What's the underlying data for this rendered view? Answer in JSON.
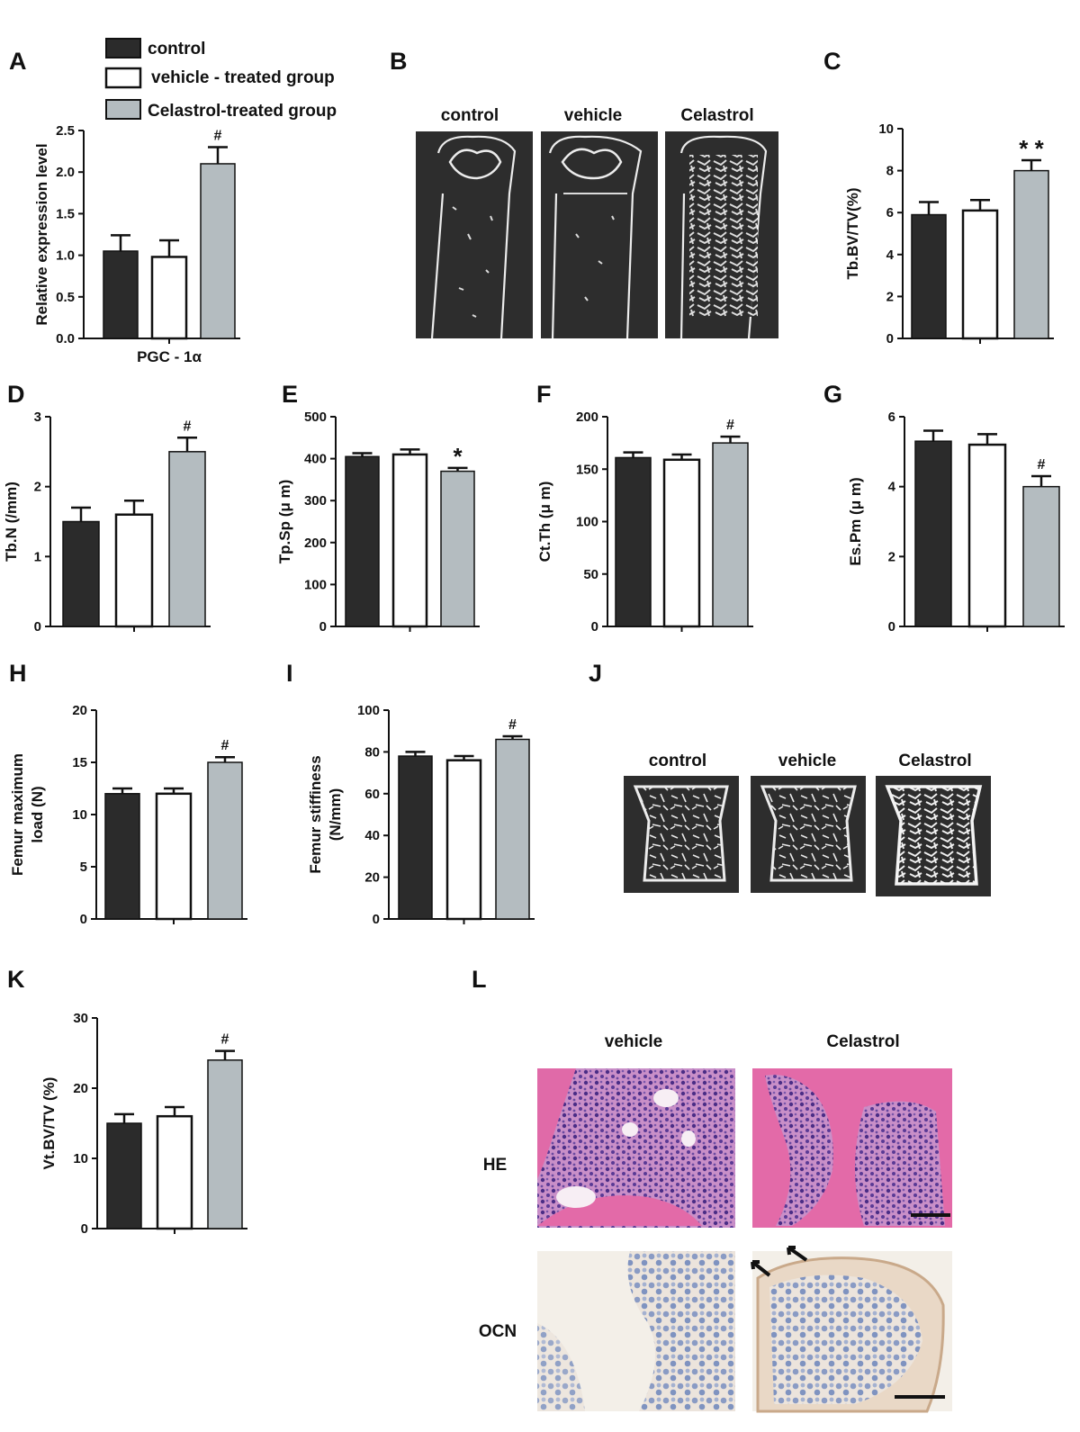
{
  "legend": {
    "items": [
      {
        "label": "control",
        "color": "#2b2b2b"
      },
      {
        "label": "vehicle - treated group",
        "color": "#ffffff"
      },
      {
        "label": "Celastrol-treated group",
        "color": "#b4bcc0"
      }
    ]
  },
  "colors": {
    "control": "#2b2b2b",
    "vehicle": "#ffffff",
    "celastrol": "#b4bcc0",
    "bone_bg": "#2d2d2d",
    "he_pink": "#e36aa8",
    "he_cells": "#5a3a8a",
    "ocn_bg": "#f2ede6"
  },
  "panels": {
    "B": {
      "letter": "B",
      "labels": [
        "control",
        "vehicle",
        "Celastrol"
      ],
      "kind": "micro-CT longitudinal femur sections"
    },
    "J": {
      "letter": "J",
      "labels": [
        "control",
        "vehicle",
        "Celastrol"
      ],
      "kind": "micro-CT vertebra sections"
    },
    "L": {
      "letter": "L",
      "col_labels": [
        "vehicle",
        "Celastrol"
      ],
      "row_labels": [
        "HE",
        "OCN"
      ],
      "kind": "histology"
    }
  },
  "chart_data": [
    {
      "id": "A",
      "letter": "A",
      "type": "bar",
      "categories": [
        "control",
        "vehicle",
        "Celastrol"
      ],
      "values": [
        1.05,
        0.98,
        2.1
      ],
      "errors": [
        0.19,
        0.2,
        0.2
      ],
      "ylim": [
        0,
        2.5
      ],
      "yticks": [
        "0.0",
        "0.5",
        "1.0",
        "1.5",
        "2.0",
        "2.5"
      ],
      "ylabel": "Relative  expression level",
      "xlabel": "PGC - 1α",
      "significance": [
        "",
        "",
        "#"
      ]
    },
    {
      "id": "C",
      "letter": "C",
      "type": "bar",
      "categories": [
        "control",
        "vehicle",
        "Celastrol"
      ],
      "values": [
        5.9,
        6.1,
        8.0
      ],
      "errors": [
        0.6,
        0.5,
        0.5
      ],
      "ylim": [
        0,
        10
      ],
      "yticks": [
        "0",
        "2",
        "4",
        "6",
        "8",
        "10"
      ],
      "ylabel": "Tb.BV/TV(%)",
      "xlabel": "",
      "significance": [
        "",
        "",
        "* *"
      ]
    },
    {
      "id": "D",
      "letter": "D",
      "type": "bar",
      "categories": [
        "control",
        "vehicle",
        "Celastrol"
      ],
      "values": [
        1.5,
        1.6,
        2.5
      ],
      "errors": [
        0.2,
        0.2,
        0.2
      ],
      "ylim": [
        0,
        3
      ],
      "yticks": [
        "0",
        "1",
        "2",
        "3"
      ],
      "ylabel": "Tb.N (/mm)",
      "xlabel": "",
      "significance": [
        "",
        "",
        "#"
      ]
    },
    {
      "id": "E",
      "letter": "E",
      "type": "bar",
      "categories": [
        "control",
        "vehicle",
        "Celastrol"
      ],
      "values": [
        405,
        410,
        370
      ],
      "errors": [
        8,
        12,
        8
      ],
      "ylim": [
        0,
        500
      ],
      "yticks": [
        "0",
        "100",
        "200",
        "300",
        "400",
        "500"
      ],
      "ylabel": "Tp.Sp (μ m)",
      "xlabel": "",
      "significance": [
        "",
        "",
        "*"
      ]
    },
    {
      "id": "F",
      "letter": "F",
      "type": "bar",
      "categories": [
        "control",
        "vehicle",
        "Celastrol"
      ],
      "values": [
        161,
        159,
        175
      ],
      "errors": [
        5,
        5,
        6
      ],
      "ylim": [
        0,
        200
      ],
      "yticks": [
        "0",
        "50",
        "100",
        "150",
        "200"
      ],
      "ylabel": "Ct.Th (μ m)",
      "xlabel": "",
      "significance": [
        "",
        "",
        "#"
      ]
    },
    {
      "id": "G",
      "letter": "G",
      "type": "bar",
      "categories": [
        "control",
        "vehicle",
        "Celastrol"
      ],
      "values": [
        5.3,
        5.2,
        4.0
      ],
      "errors": [
        0.3,
        0.3,
        0.3
      ],
      "ylim": [
        0,
        6
      ],
      "yticks": [
        "0",
        "2",
        "4",
        "6"
      ],
      "ylabel": "Es.Pm (μ m)",
      "xlabel": "",
      "significance": [
        "",
        "",
        "#"
      ]
    },
    {
      "id": "H",
      "letter": "H",
      "type": "bar",
      "categories": [
        "control",
        "vehicle",
        "Celastrol"
      ],
      "values": [
        12,
        12,
        15
      ],
      "errors": [
        0.5,
        0.5,
        0.5
      ],
      "ylim": [
        0,
        20
      ],
      "yticks": [
        "0",
        "5",
        "10",
        "15",
        "20"
      ],
      "ylabel": "Femur maximum load (N)",
      "ylabel_lines": [
        "Femur maximum",
        "load (N)"
      ],
      "xlabel": "",
      "significance": [
        "",
        "",
        "#"
      ]
    },
    {
      "id": "I",
      "letter": "I",
      "type": "bar",
      "categories": [
        "control",
        "vehicle",
        "Celastrol"
      ],
      "values": [
        78,
        76,
        86
      ],
      "errors": [
        2,
        2,
        1.5
      ],
      "ylim": [
        0,
        100
      ],
      "yticks": [
        "0",
        "20",
        "40",
        "60",
        "80",
        "100"
      ],
      "ylabel": "Femur stiffiness (N/mm)",
      "ylabel_lines": [
        "Femur stiffiness",
        "(N/mm)"
      ],
      "xlabel": "",
      "significance": [
        "",
        "",
        "#"
      ]
    },
    {
      "id": "K",
      "letter": "K",
      "type": "bar",
      "categories": [
        "control",
        "vehicle",
        "Celastrol"
      ],
      "values": [
        15,
        16,
        24
      ],
      "errors": [
        1.3,
        1.3,
        1.3
      ],
      "ylim": [
        0,
        30
      ],
      "yticks": [
        "0",
        "10",
        "20",
        "30"
      ],
      "ylabel": "Vt.BV/TV (%)",
      "xlabel": "",
      "significance": [
        "",
        "",
        "#"
      ]
    }
  ]
}
